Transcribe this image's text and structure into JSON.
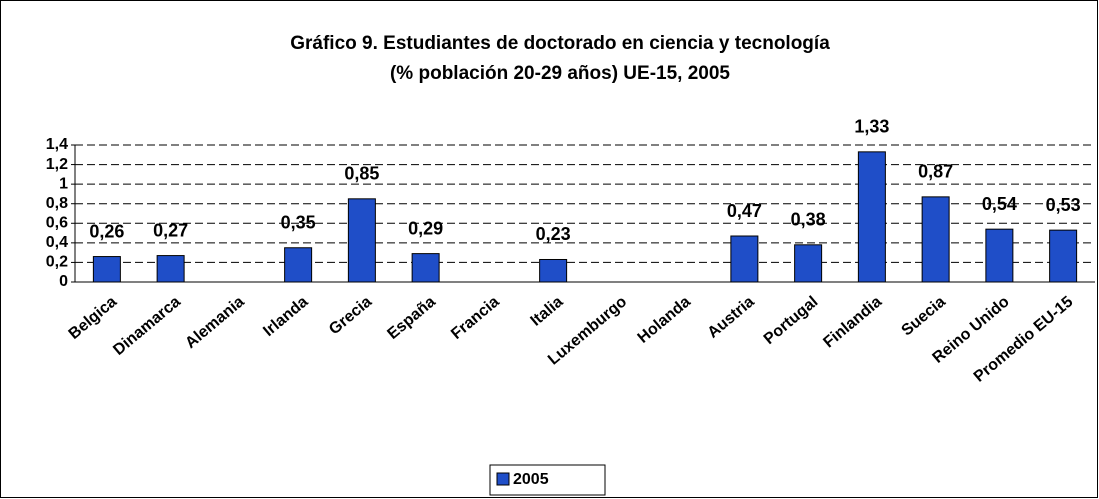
{
  "chart_data": {
    "type": "bar",
    "title": [
      "Gráfico 9. Estudiantes de doctorado  en ciencia y tecnología",
      "(%  población 20-29 años) UE-15, 2005"
    ],
    "categories": [
      "Belgica",
      "Dinamarca",
      "Alemania",
      "Irlanda",
      "Grecia",
      "España",
      "Francia",
      "Italia",
      "Luxemburgo",
      "Holanda",
      "Austria",
      "Portugal",
      "Finlandia",
      "Suecia",
      "Reino Unido",
      "Promedio EU-15"
    ],
    "series": [
      {
        "name": "2005",
        "color": "#1f4ec8",
        "values": [
          0.26,
          0.27,
          null,
          0.35,
          0.85,
          0.29,
          null,
          0.23,
          null,
          null,
          0.47,
          0.38,
          1.33,
          0.87,
          0.54,
          0.53
        ],
        "value_labels": [
          "0,26",
          "0,27",
          null,
          "0,35",
          "0,85",
          "0,29",
          null,
          "0,23",
          null,
          null,
          "0,47",
          "0,38",
          "1,33",
          "0,87",
          "0,54",
          "0,53"
        ]
      }
    ],
    "ylim": [
      0,
      1.4
    ],
    "yticks": [
      0,
      {
        "value": 0.2,
        "label": "0,2"
      },
      {
        "value": 0.4,
        "label": "0,4"
      },
      {
        "value": 0.6,
        "label": "0,6"
      },
      {
        "value": 0.8,
        "label": "0,8"
      },
      1,
      {
        "value": 1.2,
        "label": "1,2"
      },
      {
        "value": 1.4,
        "label": "1,4"
      }
    ],
    "grid": true,
    "legend": "bottom"
  }
}
